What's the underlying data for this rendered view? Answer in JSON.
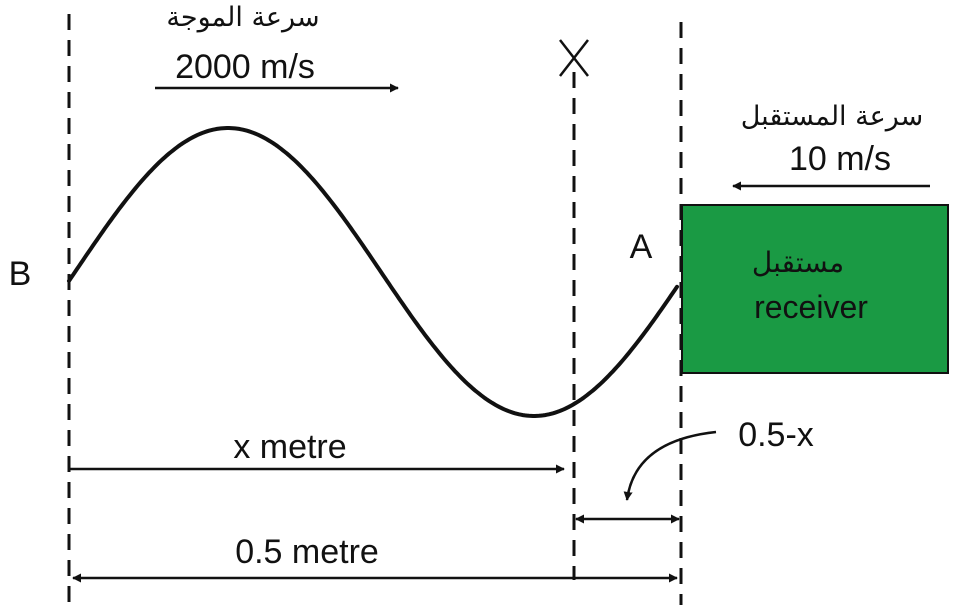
{
  "wave": {
    "speed_label_ar": "سرعة الموجة",
    "speed_value": "2000 m/s"
  },
  "receiver": {
    "speed_label_ar": "سرعة المستقبل",
    "speed_value": "10 m/s",
    "label_ar": "مستقبل",
    "label_en": "receiver",
    "color": "#1a9a44"
  },
  "points": {
    "left": "B",
    "right": "A",
    "marker": "X"
  },
  "dimensions": {
    "x_label": "x metre",
    "remainder_label": "0.5-x",
    "total_label": "0.5 metre"
  }
}
